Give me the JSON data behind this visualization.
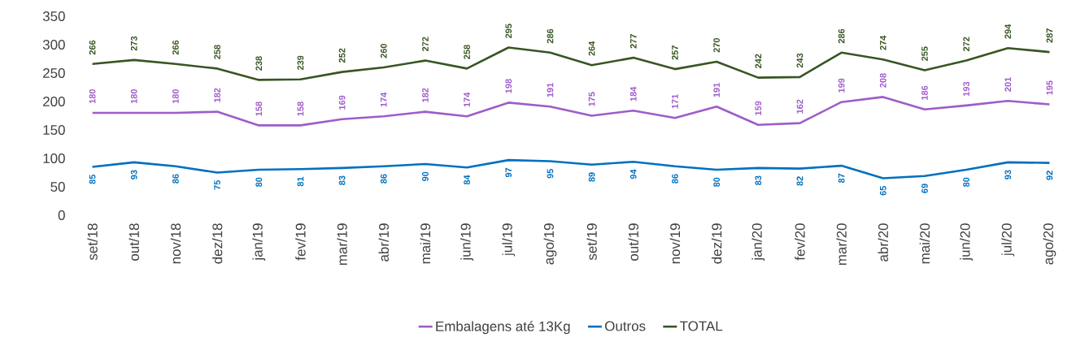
{
  "chart_data": {
    "type": "line",
    "categories": [
      "set/18",
      "out/18",
      "nov/18",
      "dez/18",
      "jan/19",
      "fev/19",
      "mar/19",
      "abr/19",
      "mai/19",
      "jun/19",
      "jul/19",
      "ago/19",
      "set/19",
      "out/19",
      "nov/19",
      "dez/19",
      "jan/20",
      "fev/20",
      "mar/20",
      "abr/20",
      "mai/20",
      "jun/20",
      "jul/20",
      "ago/20"
    ],
    "series": [
      {
        "name": "Embalagens até 13Kg",
        "color": "#9e5cc9",
        "values": [
          180,
          180,
          180,
          182,
          158,
          158,
          169,
          174,
          182,
          174,
          198,
          191,
          175,
          184,
          171,
          191,
          159,
          162,
          199,
          208,
          186,
          193,
          201,
          195
        ]
      },
      {
        "name": "Outros",
        "color": "#0070c0",
        "values": [
          85,
          93,
          86,
          75,
          80,
          81,
          83,
          86,
          90,
          84,
          97,
          95,
          89,
          94,
          86,
          80,
          83,
          82,
          87,
          65,
          69,
          80,
          93,
          92
        ]
      },
      {
        "name": "TOTAL",
        "color": "#375623",
        "values": [
          266,
          273,
          266,
          258,
          238,
          239,
          252,
          260,
          272,
          258,
          295,
          286,
          264,
          277,
          257,
          270,
          242,
          243,
          286,
          274,
          255,
          272,
          294,
          287
        ]
      }
    ],
    "ylim": [
      0,
      350
    ],
    "yticks": [
      0,
      50,
      100,
      150,
      200,
      250,
      300,
      350
    ],
    "legend": "bottom",
    "data_labels": true
  }
}
